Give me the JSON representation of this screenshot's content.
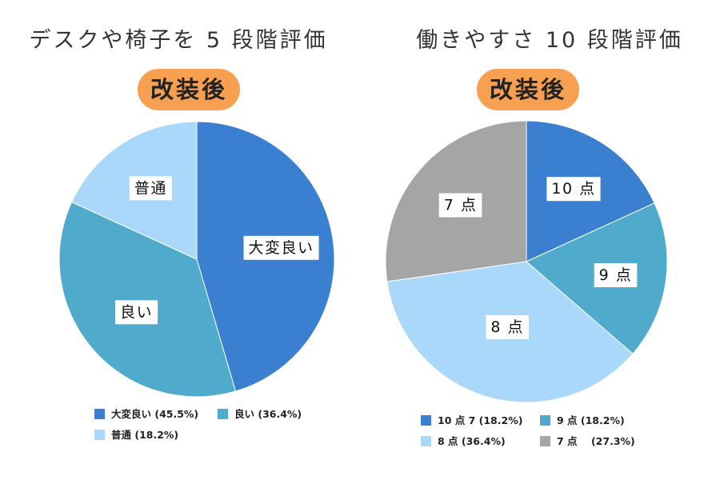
{
  "chart_data": [
    {
      "type": "pie",
      "title": "デスクや椅子を 5 段階評価",
      "subtitle": "改装後",
      "subtitle_color": "#F7A052",
      "legend_position": "bottom",
      "slices": [
        {
          "label": "大変良い",
          "value": 45.5,
          "color": "#3A7FD0",
          "legend": "大変良い (45.5%)"
        },
        {
          "label": "良い",
          "value": 36.4,
          "color": "#4FAACC",
          "legend": "良い (36.4%)"
        },
        {
          "label": "普通",
          "value": 18.2,
          "color": "#A9D8FA",
          "legend": "普通 (18.2%)"
        }
      ]
    },
    {
      "type": "pie",
      "title": "働きやすさ 10 段階評価",
      "subtitle": "改装後",
      "subtitle_color": "#F7A052",
      "legend_position": "bottom",
      "slices": [
        {
          "label": "10 点",
          "value": 18.2,
          "color": "#3A7FD0",
          "legend": "10 点 7 (18.2%)"
        },
        {
          "label": "9 点",
          "value": 18.2,
          "color": "#4FAACC",
          "legend": "9 点 (18.2%)"
        },
        {
          "label": "8 点",
          "value": 36.4,
          "color": "#A9D8FA",
          "legend": "8 点 (36.4%)"
        },
        {
          "label": "7 点",
          "value": 27.3,
          "color": "#A5A5A5",
          "legend": "7 点    (27.3%)"
        }
      ]
    }
  ]
}
